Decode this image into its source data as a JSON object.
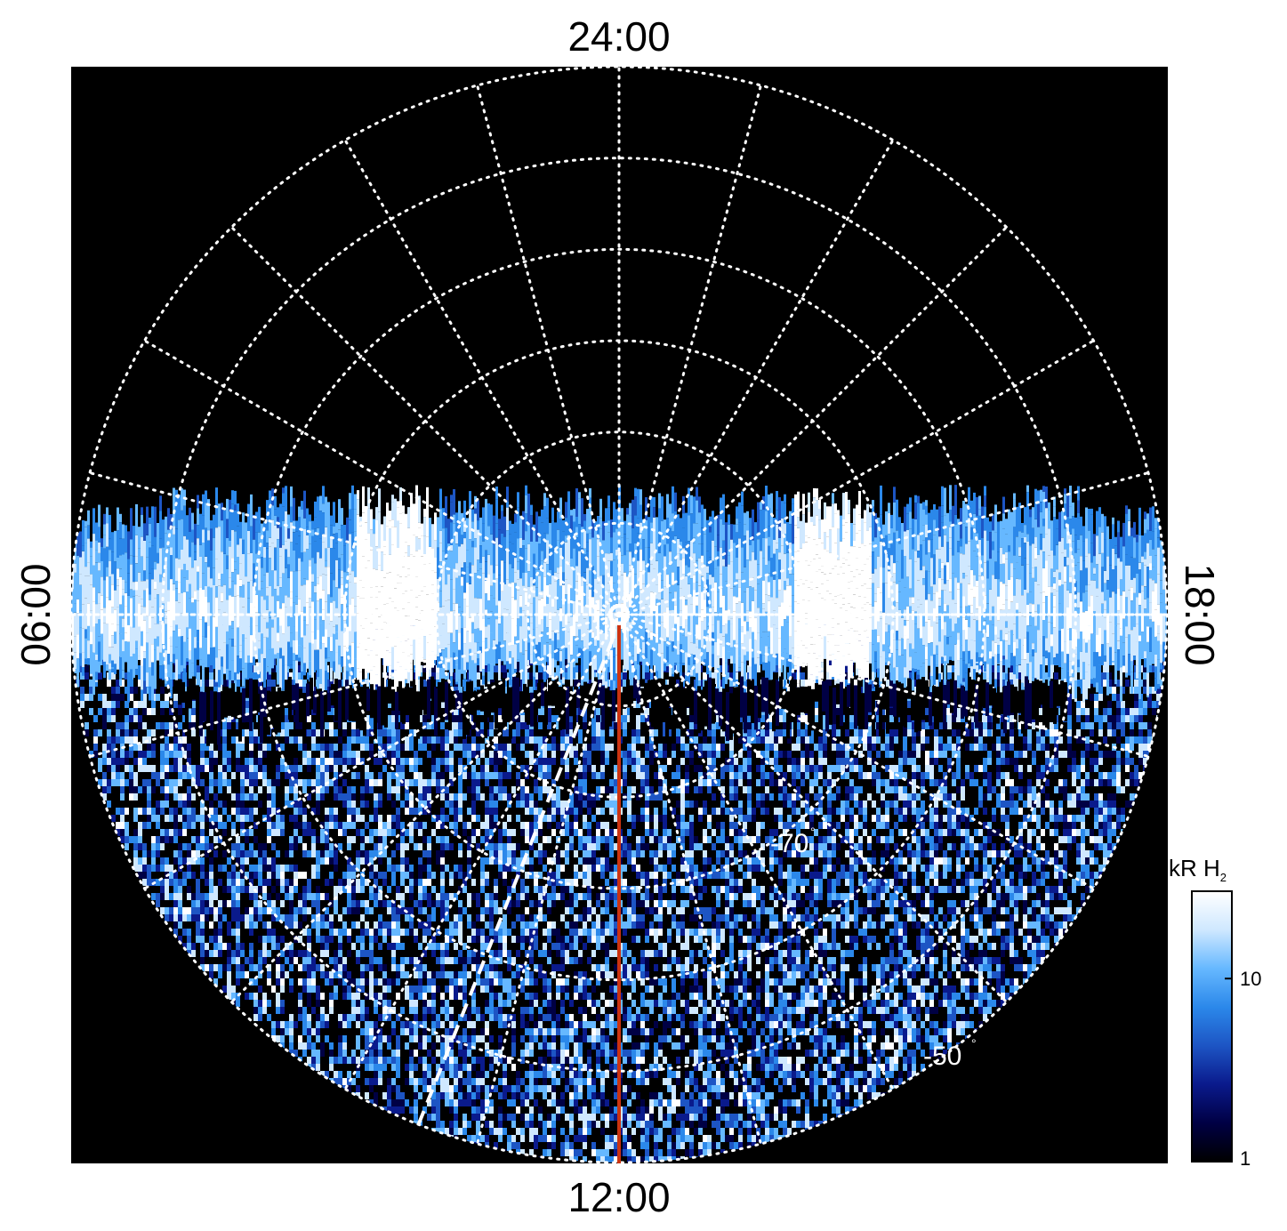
{
  "chart_data": {
    "type": "heatmap",
    "projection": "polar",
    "title": "",
    "lt_labels": {
      "top": "24:00",
      "bottom": "12:00",
      "left": "06:00",
      "right": "18:00"
    },
    "lat_labels": [
      {
        "value": "-70",
        "unit": "°"
      },
      {
        "value": "-50",
        "unit": "°"
      }
    ],
    "grid": {
      "enabled": true,
      "style": "dotted",
      "color": "#ffffff",
      "lt_spokes_hours": 1,
      "lat_circles_deg": [
        -80,
        -70,
        -60,
        -50,
        -40,
        -30
      ]
    },
    "dashed_line": {
      "color": "#ffffff",
      "style": "dashed"
    },
    "reference_line": {
      "color": "#cc3311",
      "lt": "12:00"
    },
    "emission_band": {
      "description_visible": false,
      "lt_range": [
        "06:00",
        "18:00"
      ],
      "peak_regions_lt": [
        "07:00",
        "17:00"
      ]
    },
    "colorbar": {
      "title": "kR H",
      "title_sub": "2",
      "scale": "log",
      "min": 1,
      "max": 30,
      "ticks": [
        {
          "value": 10,
          "label": "10"
        },
        {
          "value": 1,
          "label": "1"
        }
      ],
      "colors": [
        "#000000",
        "#000044",
        "#0a1a8c",
        "#1d55c4",
        "#2b88ea",
        "#66b8ff",
        "#cfe8ff",
        "#ffffff"
      ]
    },
    "background": "#000000"
  }
}
